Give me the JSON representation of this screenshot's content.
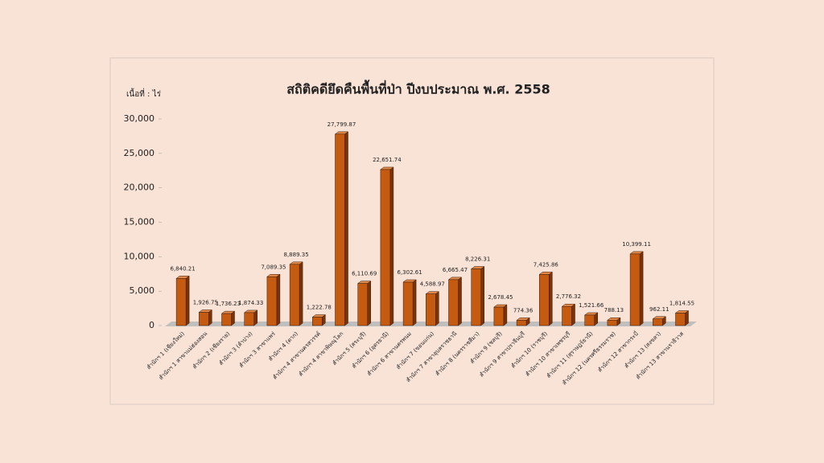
{
  "chart_data": {
    "type": "bar3d",
    "title": "สถิติคดียึดคืนพื้นที่ป่า ปีงบประมาณ พ.ศ. 2558",
    "y_label": "เนื้อที่ : ไร่",
    "categories": [
      "สำนักฯ 1 (เชียงใหม่)",
      "สำนักฯ 1 สาขาแม่ฮ่องสอน",
      "สำนักฯ 2 (เชียงราย)",
      "สำนักฯ 3 (ลำปาง)",
      "สำนักฯ 3 สาขาแพร่",
      "สำนักฯ 4 (ตาก)",
      "สำนักฯ 4 สาขานครสวรรค์",
      "สำนักฯ 4 สาขาพิษณุโลก",
      "สำนักฯ 5 (สระบุรี)",
      "สำนักฯ 6 (อุดรธานี)",
      "สำนักฯ 6 สาขานครพนม",
      "สำนักฯ 7 (ขอนแก่น)",
      "สำนักฯ 7 สาขาอุบลราชธานี",
      "สำนักฯ 8 (นครราชสีมา)",
      "สำนักฯ 9 (ชลบุรี)",
      "สำนักฯ 9 สาขาปราจีนบุรี",
      "สำนักฯ 10 (ราชบุรี)",
      "สำนักฯ 10 สาขาเพชรบุรี",
      "สำนักฯ 11 (สุราษฎร์ธานี)",
      "สำนักฯ 12 (นครศรีธรรมราช)",
      "สำนักฯ 12 สาขากระบี่",
      "สำนักฯ 13 (สงขลา)",
      "สำนักฯ 13 สาขานราธิวาส"
    ],
    "values": [
      6840.21,
      1926.75,
      1736.23,
      1874.33,
      7089.35,
      8889.35,
      1222.78,
      27799.87,
      6110.69,
      22651.74,
      6302.61,
      4588.97,
      6665.47,
      8226.31,
      2678.45,
      774.36,
      7425.86,
      2776.32,
      1521.66,
      788.13,
      10399.11,
      962.11,
      1814.55
    ],
    "value_labels": [
      "6,840.21",
      "1,926.75",
      "1,736.23",
      "1,874.33",
      "7,089.35",
      "8,889.35",
      "1,222.78",
      "27,799.87",
      "6,110.69",
      "22,651.74",
      "6,302.61",
      "4,588.97",
      "6,665.47",
      "8,226.31",
      "2,678.45",
      "774.36",
      "7,425.86",
      "2,776.32",
      "1,521.66",
      "788.13",
      "10,399.11",
      "962.11",
      "1,814.55"
    ],
    "color": "#c55a11",
    "ylim": [
      0,
      30000
    ],
    "yticks": [
      0,
      {
        "value": 5000,
        "label": "5,000"
      },
      {
        "value": 10000,
        "label": "10,000"
      },
      {
        "value": 15000,
        "label": "15,000"
      },
      {
        "value": 20000,
        "label": "20,000"
      },
      {
        "value": 25000,
        "label": "25,000"
      },
      {
        "value": 30000,
        "label": "30,000"
      }
    ]
  }
}
